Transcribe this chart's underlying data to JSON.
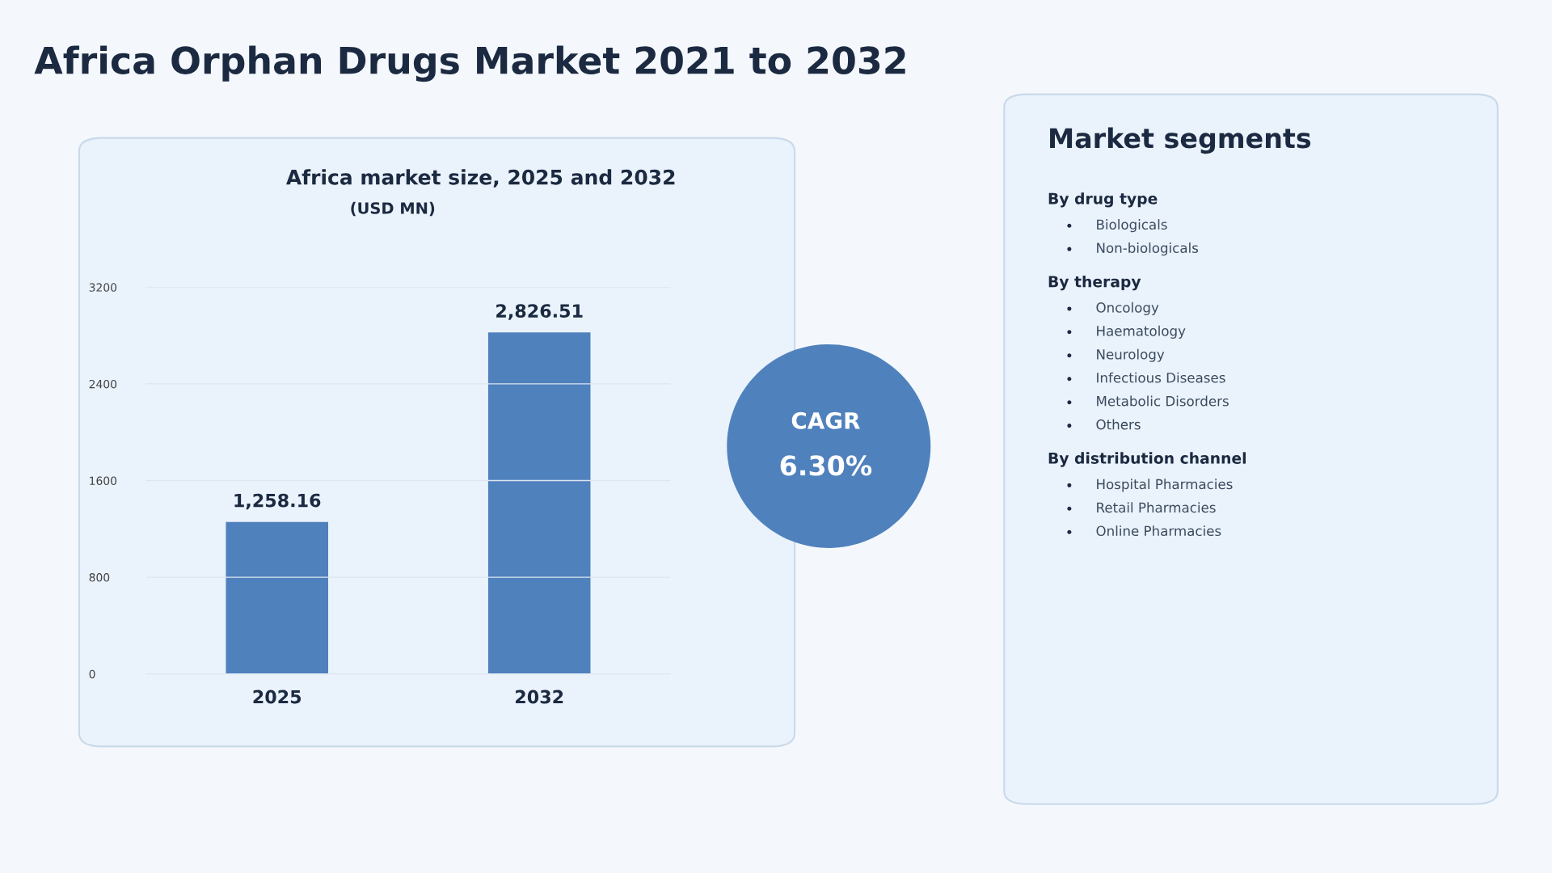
{
  "chart_data": [
    {
      "type": "other",
      "title": "Africa Orphan Drugs Market 2021 to 2032"
    },
    {
      "type": "bar",
      "title": "Africa market size, 2025 and 2032",
      "subtitle": "(USD MN)",
      "categories": [
        "2025",
        "2032"
      ],
      "values": [
        1258.16,
        2826.51
      ],
      "value_labels": [
        "1,258.16",
        "2,826.51"
      ],
      "color": "#4f81bd",
      "ylim": [
        0,
        3200
      ],
      "yticks": [
        0,
        800,
        1600,
        2400,
        3200
      ],
      "grid": "y",
      "annotations": [
        "CAGR",
        "6.30%"
      ]
    },
    {
      "type": "other",
      "title": "Market segments"
    },
    {
      "type": "other",
      "title": "By drug type",
      "annotations": [
        "Biologicals",
        "Non-biologicals"
      ]
    },
    {
      "type": "other",
      "title": "By therapy",
      "annotations": [
        "Oncology",
        "Haematology",
        "Neurology",
        "Infectious Diseases",
        "Metabolic Disorders",
        "Others"
      ]
    },
    {
      "type": "other",
      "title": "By distribution channel",
      "annotations": [
        "Hospital Pharmacies",
        "Retail Pharmacies",
        "Online Pharmacies"
      ]
    }
  ]
}
